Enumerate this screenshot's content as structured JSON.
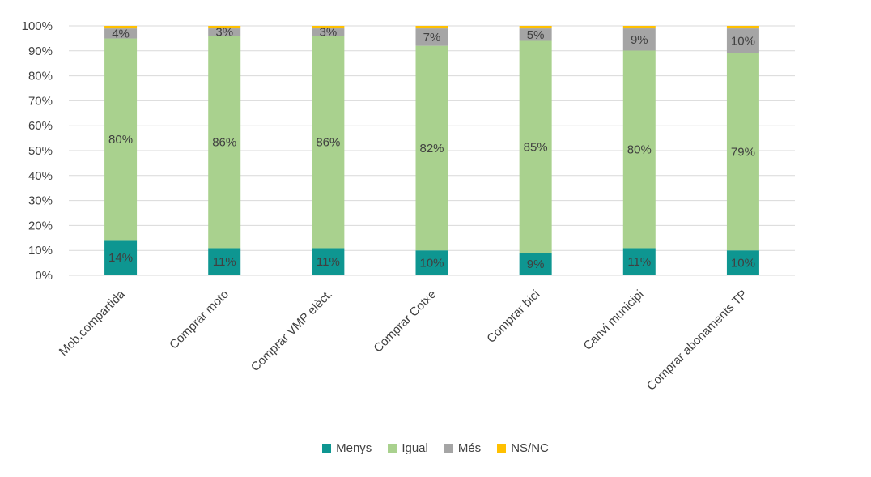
{
  "chart_data": {
    "type": "bar",
    "stacked": true,
    "percent": true,
    "categories": [
      "Mob.compartida",
      "Comprar moto",
      "Comprar VMP elèct.",
      "Comprar Cotxe",
      "Comprar bici",
      "Canvi municipi",
      "Comprar abonaments TP"
    ],
    "series": [
      {
        "name": "Menys",
        "color": "#0e9691",
        "values": [
          14,
          11,
          11,
          10,
          9,
          11,
          10
        ],
        "labels": [
          "14%",
          "11%",
          "11%",
          "10%",
          "9%",
          "11%",
          "10%"
        ]
      },
      {
        "name": "Igual",
        "color": "#a9d18e",
        "values": [
          80,
          86,
          86,
          82,
          85,
          80,
          79
        ],
        "labels": [
          "80%",
          "86%",
          "86%",
          "82%",
          "85%",
          "80%",
          "79%"
        ]
      },
      {
        "name": "Més",
        "color": "#a5a5a5",
        "values": [
          4,
          3,
          3,
          7,
          5,
          9,
          10
        ],
        "labels": [
          "4%",
          "3%",
          "3%",
          "7%",
          "5%",
          "9%",
          "10%"
        ]
      },
      {
        "name": "NS/NC",
        "color": "#ffc000",
        "values": [
          1,
          1,
          1,
          1,
          1,
          1,
          1
        ],
        "labels": [
          "",
          "",
          "",
          "",
          "",
          "",
          ""
        ]
      }
    ],
    "ylim": [
      0,
      100
    ],
    "yticks": [
      "0%",
      "10%",
      "20%",
      "30%",
      "40%",
      "50%",
      "60%",
      "70%",
      "80%",
      "90%",
      "100%"
    ],
    "grid": true,
    "legend_position": "bottom"
  }
}
